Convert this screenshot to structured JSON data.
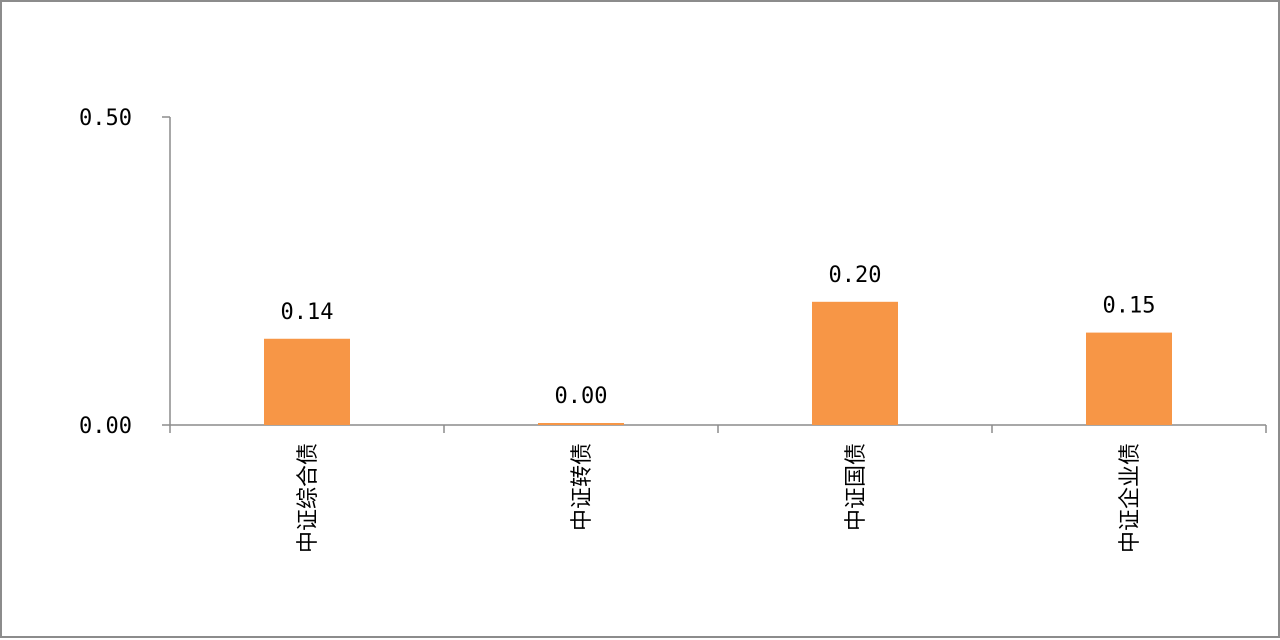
{
  "chart_data": {
    "type": "bar",
    "categories": [
      "中证综合债",
      "中证转债",
      "中证国债",
      "中证企业债"
    ],
    "values": [
      0.14,
      0.0,
      0.2,
      0.15
    ],
    "data_labels": [
      "0.14",
      "0.00",
      "0.20",
      "0.15"
    ],
    "y_ticks": [
      0.0,
      0.5
    ],
    "y_tick_labels": [
      "0.00",
      "0.50"
    ],
    "ylim": [
      0,
      0.5
    ],
    "grid": false,
    "legend": "none",
    "bar_color": "#F79646",
    "axis_color": "#8c8c8c",
    "category_label_orientation": "vertical"
  }
}
